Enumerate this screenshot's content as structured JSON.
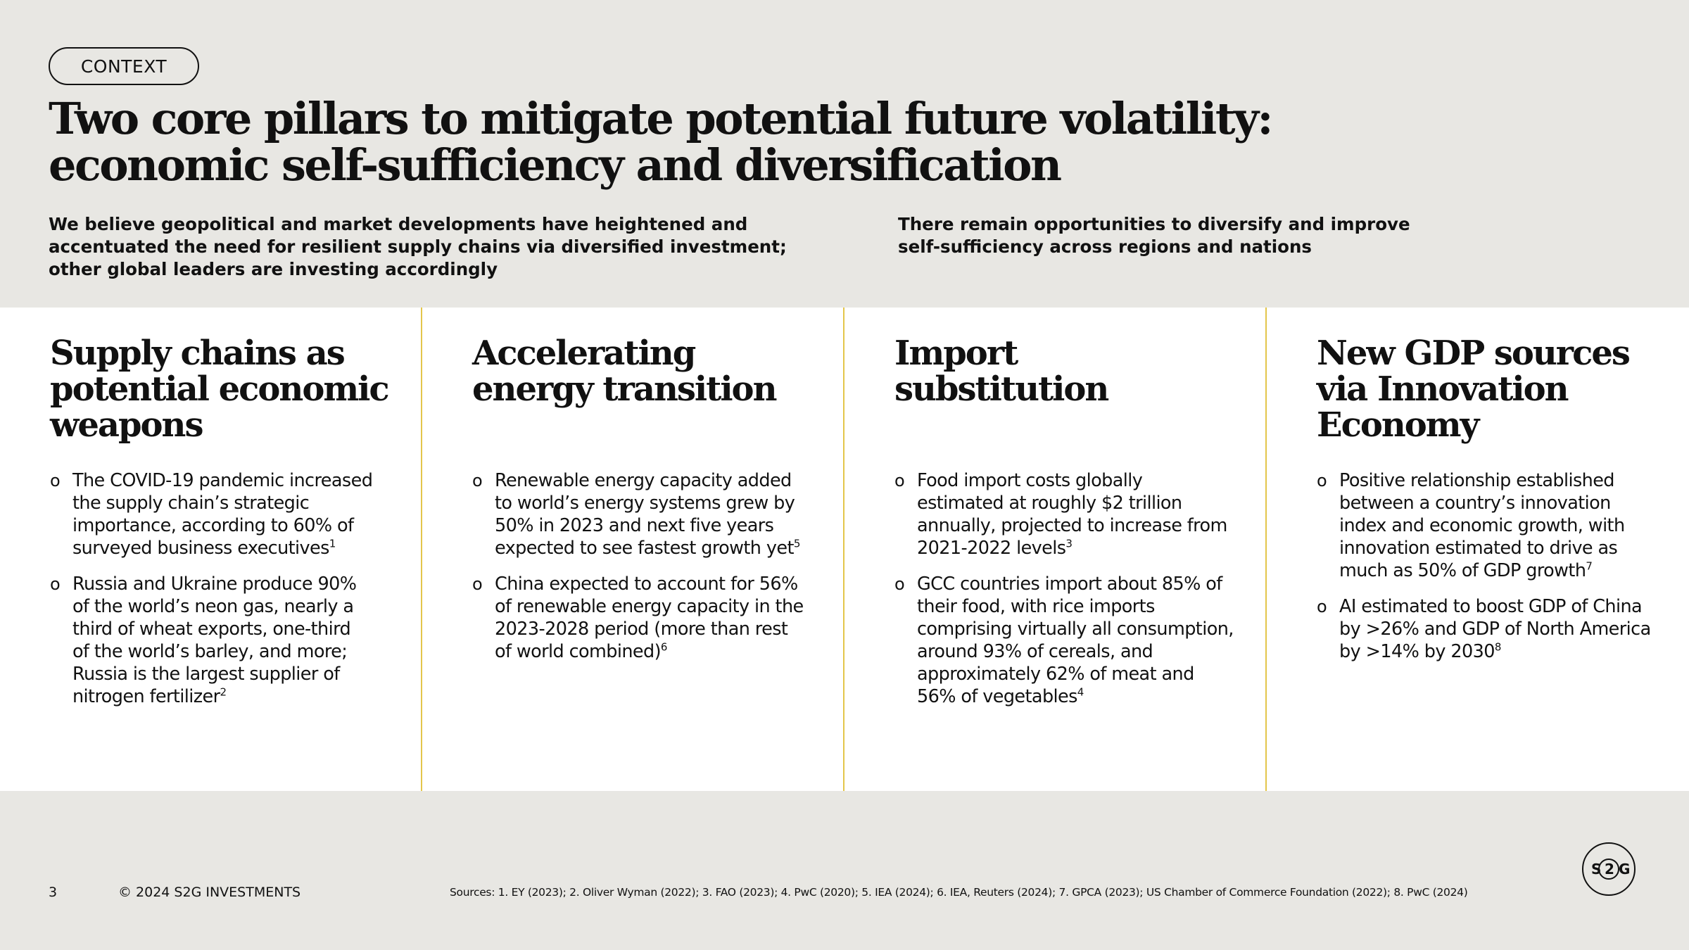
{
  "tag": "CONTEXT",
  "title": {
    "line1": "Two core pillars to mitigate potential future volatility:",
    "line2": "economic self-sufficiency and diversification"
  },
  "intro_left": {
    "line1": "We believe geopolitical and market developments have heightened and",
    "line2": "accentuated the need for resilient supply chains via diversified investment;",
    "line3": "other global leaders are investing accordingly"
  },
  "intro_right": {
    "line1": "There remain opportunities to diversify and improve",
    "line2": "self-sufficiency across regions and nations"
  },
  "bullet_mark": "o",
  "columns": [
    {
      "title": [
        "Supply chains as",
        "potential economic",
        "weapons"
      ],
      "bullets": [
        {
          "lines": [
            "The COVID-19 pandemic increased",
            "the supply chain’s strategic",
            "importance, according to 60% of",
            "surveyed business executives"
          ],
          "note": "1"
        },
        {
          "lines": [
            "Russia and Ukraine produce 90%",
            "of the world’s neon gas, nearly a",
            "third of wheat exports, one-third",
            "of the world’s barley, and more;",
            "Russia is the largest supplier of",
            "nitrogen fertilizer"
          ],
          "note": "2"
        }
      ]
    },
    {
      "title": [
        "Accelerating",
        "energy transition"
      ],
      "bullets": [
        {
          "lines": [
            "Renewable energy capacity added",
            "to world’s energy systems grew by",
            "50% in 2023 and next five years",
            "expected to see fastest growth yet"
          ],
          "note": "5"
        },
        {
          "lines": [
            "China expected to account for 56%",
            "of renewable energy capacity in the",
            "2023-2028 period (more than rest",
            "of world combined)"
          ],
          "note": "6"
        }
      ]
    },
    {
      "title": [
        "Import",
        "substitution"
      ],
      "bullets": [
        {
          "lines": [
            "Food import costs globally",
            "estimated at roughly $2 trillion",
            "annually, projected to increase from",
            "2021-2022 levels"
          ],
          "note": "3"
        },
        {
          "lines": [
            "GCC countries import about 85% of",
            "their food, with rice imports",
            "comprising virtually all consumption,",
            "around 93% of cereals, and",
            "approximately 62% of meat and",
            "56% of vegetables"
          ],
          "note": "4"
        }
      ]
    },
    {
      "title": [
        "New GDP sources",
        "via Innovation",
        "Economy"
      ],
      "bullets": [
        {
          "lines": [
            "Positive relationship established",
            "between a country’s innovation",
            "index and economic growth, with",
            "innovation estimated to drive as",
            "much as 50% of GDP growth"
          ],
          "note": "7"
        },
        {
          "lines": [
            "AI estimated to boost GDP of China",
            "by >26% and GDP of North America",
            "by >14% by 2030"
          ],
          "note": "8"
        }
      ]
    }
  ],
  "footer": {
    "page": "3",
    "copyright": "© 2024 S2G INVESTMENTS",
    "sources": "Sources: 1. EY (2023); 2. Oliver Wyman (2022); 3. FAO (2023); 4. PwC (2020); 5. IEA (2024); 6. IEA, Reuters (2024); 7. GPCA (2023); US Chamber of Commerce Foundation (2022); 8. PwC (2024)"
  },
  "logo": {
    "left": "S",
    "center": "2",
    "right": "G"
  },
  "colors": {
    "background": "#e8e7e3",
    "panel": "#ffffff",
    "divider": "#e4c64b",
    "text": "#111111"
  }
}
